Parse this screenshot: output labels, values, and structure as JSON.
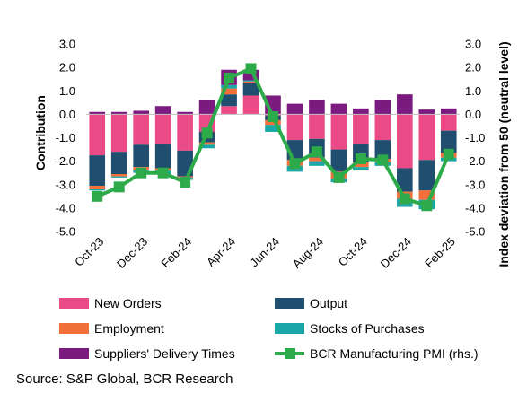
{
  "chart_data": {
    "type": "bar",
    "stacked": true,
    "categories": [
      "Oct-23",
      "Nov-23",
      "Dec-23",
      "Jan-24",
      "Feb-24",
      "Mar-24",
      "Apr-24",
      "May-24",
      "Jun-24",
      "Jul-24",
      "Aug-24",
      "Sep-24",
      "Oct-24",
      "Nov-24",
      "Dec-24",
      "Jan-25",
      "Feb-25"
    ],
    "x_tick_labels": [
      "Oct-23",
      "Dec-23",
      "Feb-24",
      "Apr-24",
      "Jun-24",
      "Aug-24",
      "Oct-24",
      "Dec-24",
      "Feb-25"
    ],
    "series": [
      {
        "name": "New Orders",
        "color": "#ea4b86",
        "axis": "left",
        "values": [
          -1.75,
          -1.6,
          -1.3,
          -1.25,
          -1.55,
          -0.75,
          0.35,
          0.8,
          -0.05,
          -1.1,
          -1.05,
          -1.5,
          -1.25,
          -1.1,
          -2.3,
          -1.95,
          -0.7
        ]
      },
      {
        "name": "Output",
        "color": "#1f4e6e",
        "axis": "left",
        "values": [
          -1.3,
          -0.95,
          -0.95,
          -1.05,
          -1.1,
          -0.45,
          0.5,
          0.55,
          -0.2,
          -0.85,
          -0.8,
          -0.95,
          -0.8,
          -0.8,
          -1.0,
          -1.3,
          -0.95
        ]
      },
      {
        "name": "Employment",
        "color": "#f2713a",
        "axis": "left",
        "values": [
          -0.15,
          -0.1,
          -0.15,
          -0.1,
          -0.05,
          -0.1,
          0.25,
          0.05,
          -0.2,
          -0.25,
          -0.15,
          -0.3,
          -0.2,
          -0.15,
          -0.3,
          -0.4,
          -0.2
        ]
      },
      {
        "name": "Stocks of Purchases",
        "color": "#1ba7a7",
        "axis": "left",
        "values": [
          -0.05,
          -0.05,
          -0.1,
          -0.15,
          -0.1,
          -0.15,
          0.15,
          0.05,
          -0.3,
          -0.25,
          -0.2,
          -0.15,
          -0.15,
          -0.15,
          -0.35,
          -0.4,
          -0.15
        ]
      },
      {
        "name": "Suppliers' Delivery Times",
        "color": "#7b1a7f",
        "axis": "left",
        "values": [
          0.1,
          0.1,
          0.15,
          0.35,
          0.1,
          0.6,
          0.65,
          0.45,
          0.8,
          0.45,
          0.6,
          0.45,
          0.25,
          0.6,
          0.85,
          0.2,
          0.25
        ]
      },
      {
        "name": "BCR Manufacturing PMI (rhs.)",
        "type": "line",
        "color": "#2dab4a",
        "axis": "right",
        "values": [
          -3.5,
          -3.1,
          -2.5,
          -2.5,
          -2.9,
          -0.8,
          1.55,
          1.95,
          -0.1,
          -2.1,
          -1.6,
          -2.7,
          -1.9,
          -1.95,
          -3.6,
          -3.9,
          -1.7
        ]
      }
    ],
    "ylabel": "Contribution",
    "y2label": "Index deviation from 50 (neutral level)",
    "ylim": [
      -5.0,
      3.0
    ],
    "y2lim": [
      -5.0,
      3.0
    ],
    "yticks": [
      "3.0",
      "2.0",
      "1.0",
      "0.0",
      "-1.0",
      "-2.0",
      "-3.0",
      "-4.0",
      "-5.0"
    ],
    "ytick_values": [
      3,
      2,
      1,
      0,
      -1,
      -2,
      -3,
      -4,
      -5
    ],
    "grid": false,
    "legend_position": "bottom"
  },
  "source": "Source: S&P Global, BCR Research"
}
